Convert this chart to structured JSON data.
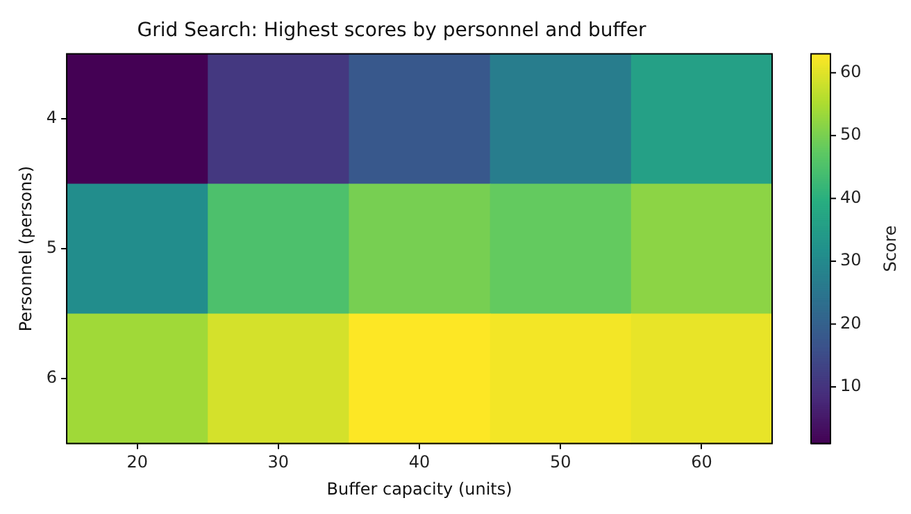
{
  "chart_data": {
    "type": "heatmap",
    "title": "Grid Search: Highest scores by personnel and buffer",
    "xlabel": "Buffer capacity (units)",
    "ylabel": "Personnel (persons)",
    "clabel": "Score",
    "categories": [
      "20",
      "30",
      "40",
      "50",
      "60"
    ],
    "y_categories": [
      "4",
      "5",
      "6"
    ],
    "cells": [
      [
        1,
        11,
        18,
        27,
        36
      ],
      [
        31,
        45,
        50,
        48,
        52
      ],
      [
        54,
        59,
        63,
        62,
        61
      ]
    ],
    "clim": [
      1,
      63
    ],
    "cticks": [
      10,
      20,
      30,
      40,
      50,
      60
    ]
  }
}
